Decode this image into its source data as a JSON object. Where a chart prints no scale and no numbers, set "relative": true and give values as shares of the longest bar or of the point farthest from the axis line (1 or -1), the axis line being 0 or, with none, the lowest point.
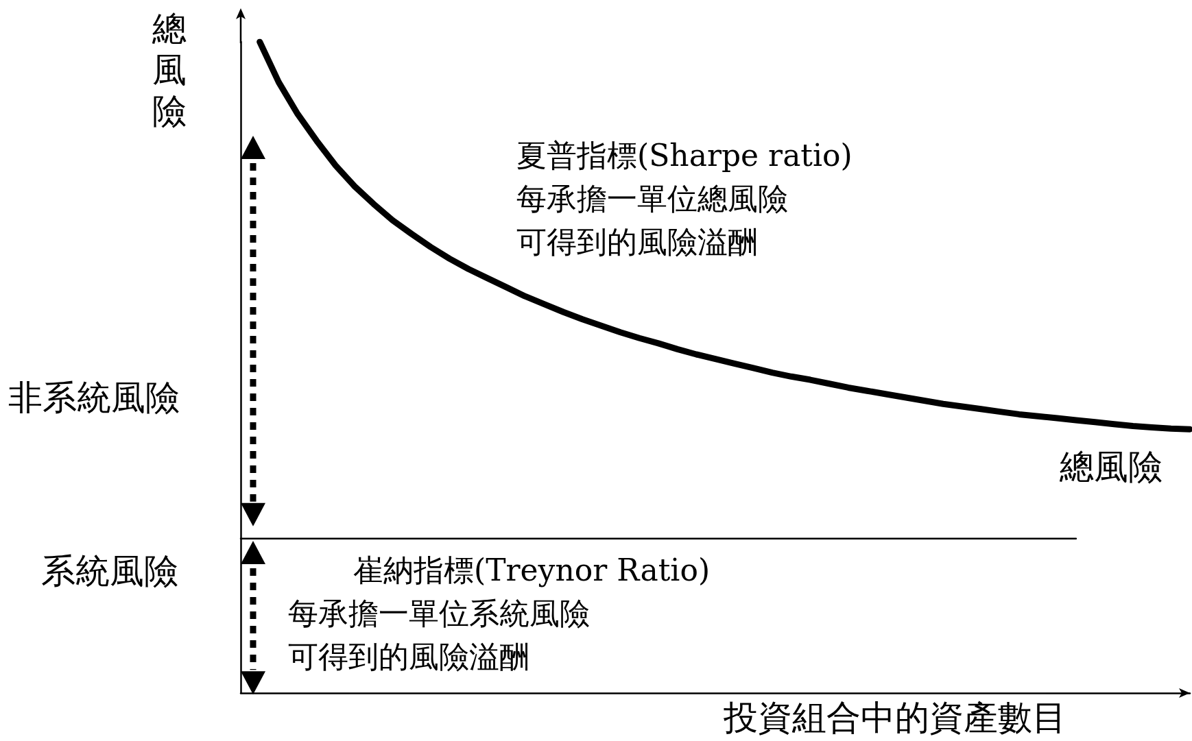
{
  "chart_data": {
    "type": "line",
    "relative": true,
    "ylabel": "總風險",
    "xlabel": "投資組合中的資產數目",
    "categories": [
      null,
      null,
      null,
      null,
      null,
      null,
      null,
      null,
      null,
      null,
      null,
      null,
      null,
      null,
      null,
      null,
      null,
      null,
      null,
      null,
      null,
      null,
      null,
      null,
      null,
      null,
      null,
      null,
      null,
      null,
      null,
      null,
      null,
      null,
      null,
      null,
      null,
      null,
      null,
      null,
      null,
      null,
      null,
      null,
      null,
      null,
      null,
      null,
      null,
      null,
      null
    ],
    "series": [
      {
        "name": "總風險",
        "color": "#000000",
        "values": [
          null,
          1,
          0.938,
          0.889,
          0.848,
          0.81,
          0.778,
          0.751,
          0.726,
          0.705,
          0.685,
          0.667,
          0.651,
          0.637,
          0.623,
          0.609,
          0.597,
          0.585,
          0.574,
          0.564,
          0.554,
          0.545,
          0.537,
          0.528,
          0.52,
          0.513,
          0.506,
          0.499,
          0.492,
          0.486,
          0.481,
          0.475,
          0.469,
          0.464,
          0.459,
          0.454,
          0.449,
          0.444,
          0.44,
          0.436,
          0.432,
          0.428,
          0.425,
          0.422,
          0.419,
          0.416,
          0.413,
          0.41,
          0.408,
          0.406,
          0.405
        ]
      },
      {
        "color": "#000000",
        "values": [
          0.237,
          0.237,
          0.237,
          0.237,
          0.237,
          0.237,
          0.237,
          0.237,
          0.237,
          0.237,
          0.237,
          0.237,
          0.237,
          0.237,
          0.237,
          0.237,
          0.237,
          0.237,
          0.237,
          0.237,
          0.237,
          0.237,
          0.237,
          0.237,
          0.237,
          0.237,
          0.237,
          0.237,
          0.237,
          0.237,
          0.237,
          0.237,
          0.237,
          0.237,
          0.237,
          0.237,
          0.237,
          0.237,
          0.237,
          0.237,
          0.237,
          0.237,
          0.237,
          0.237,
          0.237,
          null,
          null,
          null,
          null,
          null,
          null
        ]
      }
    ],
    "annotations": [
      "系統風險",
      "非系統風險",
      "夏普指標(Sharpe ratio)",
      "每承擔一單位總風險",
      "可得到的風險溢酬",
      "崔納指標(Treynor Ratio)",
      "每承擔一單位系統風險",
      "可得到的風險溢酬"
    ],
    "grid": false,
    "marker": "none",
    "line_style": "solid"
  }
}
